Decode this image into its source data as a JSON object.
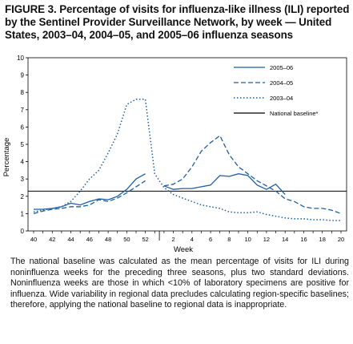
{
  "title": "FIGURE 3. Percentage of visits for influenza-like illness (ILI) reported by the Sentinel Provider Surveillance Network, by week — United States, 2003–04, 2004–05, and 2005–06 influenza seasons",
  "footnote": {
    "marker": "*",
    "text": "The national baseline was calculated as the mean percentage of visits for ILI during noninfluenza weeks for the preceding three seasons, plus two standard deviations. Noninfluenza weeks are those in which <10% of laboratory specimens are positive for influenza. Wide variability in regional data precludes calculating region-specific baselines; therefore, applying the national baseline to regional data is inappropriate."
  },
  "chart_data": {
    "type": "line",
    "title": "",
    "xlabel": "Week",
    "ylabel": "Percentage",
    "ylim": [
      0,
      10
    ],
    "yticks": [
      0,
      1,
      2,
      3,
      4,
      5,
      6,
      7,
      8,
      9,
      10
    ],
    "x_tick_labels": [
      "40",
      "42",
      "44",
      "46",
      "48",
      "50",
      "52",
      "2",
      "4",
      "6",
      "8",
      "10",
      "12",
      "14",
      "16",
      "18",
      "20"
    ],
    "weeks": [
      "40",
      "41",
      "42",
      "43",
      "44",
      "45",
      "46",
      "47",
      "48",
      "49",
      "50",
      "51",
      "52",
      "53",
      "1",
      "2",
      "3",
      "4",
      "5",
      "6",
      "7",
      "8",
      "9",
      "10",
      "11",
      "12",
      "13",
      "14",
      "15",
      "16",
      "17",
      "18",
      "19",
      "20"
    ],
    "legend_position": "top-right",
    "baseline": {
      "name": "National baseline*",
      "value": 2.3
    },
    "series": [
      {
        "name": "2005–06",
        "style": "solid",
        "color": "#1f5fa0",
        "values": [
          1.25,
          1.25,
          1.3,
          1.4,
          1.6,
          1.5,
          1.7,
          1.85,
          1.8,
          2.0,
          2.4,
          3.0,
          3.3,
          null,
          2.6,
          2.4,
          2.45,
          2.45,
          2.55,
          2.65,
          3.2,
          3.15,
          3.3,
          3.2,
          2.65,
          2.4,
          2.7,
          2.1,
          null,
          null,
          null,
          null,
          null,
          null
        ]
      },
      {
        "name": "2004–05",
        "style": "dashed",
        "color": "#1f5fa0",
        "values": [
          1.0,
          1.15,
          1.25,
          1.3,
          1.4,
          1.4,
          1.5,
          1.8,
          1.7,
          1.9,
          2.2,
          2.55,
          2.9,
          null,
          2.6,
          2.7,
          3.0,
          3.7,
          4.6,
          5.1,
          5.5,
          4.4,
          3.7,
          3.3,
          2.9,
          2.6,
          2.3,
          1.85,
          1.7,
          1.4,
          1.3,
          1.3,
          1.2,
          1.0
        ]
      },
      {
        "name": "2003–04",
        "style": "dotted",
        "color": "#1f5fa0",
        "values": [
          1.1,
          1.2,
          1.3,
          1.4,
          1.7,
          2.3,
          3.0,
          3.5,
          4.5,
          5.6,
          7.3,
          7.6,
          7.6,
          3.3,
          2.5,
          2.1,
          1.9,
          1.7,
          1.5,
          1.4,
          1.3,
          1.1,
          1.05,
          1.05,
          1.1,
          0.95,
          0.85,
          0.75,
          0.7,
          0.7,
          0.65,
          0.65,
          0.6,
          0.6
        ]
      }
    ]
  }
}
